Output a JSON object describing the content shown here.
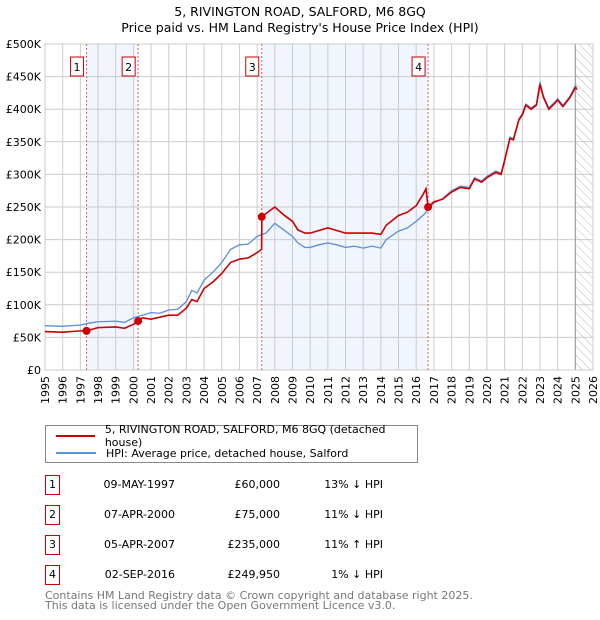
{
  "chart_data": {
    "type": "line",
    "title": "5, RIVINGTON ROAD, SALFORD, M6 8GQ",
    "subtitle": "Price paid vs. HM Land Registry's House Price Index (HPI)",
    "xlim": [
      1995,
      2026
    ],
    "ylim": [
      0,
      500000
    ],
    "x_ticks": [
      "1995",
      "1996",
      "1997",
      "1998",
      "1999",
      "2000",
      "2001",
      "2002",
      "2003",
      "2004",
      "2005",
      "2006",
      "2007",
      "2008",
      "2009",
      "2010",
      "2011",
      "2012",
      "2013",
      "2014",
      "2015",
      "2016",
      "2017",
      "2018",
      "2019",
      "2020",
      "2021",
      "2022",
      "2023",
      "2024",
      "2025",
      "2026"
    ],
    "y_ticks": [
      {
        "v": 0,
        "label": "£0"
      },
      {
        "v": 50000,
        "label": "£50K"
      },
      {
        "v": 100000,
        "label": "£100K"
      },
      {
        "v": 150000,
        "label": "£150K"
      },
      {
        "v": 200000,
        "label": "£200K"
      },
      {
        "v": 250000,
        "label": "£250K"
      },
      {
        "v": 300000,
        "label": "£300K"
      },
      {
        "v": 350000,
        "label": "£350K"
      },
      {
        "v": 400000,
        "label": "£400K"
      },
      {
        "v": 450000,
        "label": "£450K"
      },
      {
        "v": 500000,
        "label": "£500K"
      }
    ],
    "grid": true,
    "forecast_hatch_from": 2025.0,
    "series": [
      {
        "name": "5, RIVINGTON ROAD, SALFORD, M6 8GQ (detached house)",
        "color": "#cc0000",
        "x": [
          1995,
          1996,
          1997,
          1997.35,
          1998,
          1999,
          1999.5,
          2000,
          2000.27,
          2000.5,
          2001,
          2002,
          2002.5,
          2003,
          2003.3,
          2003.6,
          2004,
          2004.5,
          2005,
          2005.5,
          2006,
          2006.5,
          2007,
          2007.25,
          2007.27,
          2007.5,
          2008,
          2008.5,
          2009,
          2009.3,
          2009.7,
          2010,
          2010.5,
          2011,
          2011.5,
          2012,
          2012.5,
          2013,
          2013.5,
          2014,
          2014.3,
          2015,
          2015.5,
          2016,
          2016.4,
          2016.55,
          2016.67,
          2017,
          2017.5,
          2018,
          2018.5,
          2019,
          2019.3,
          2019.7,
          2020,
          2020.5,
          2020.8,
          2021,
          2021.3,
          2021.5,
          2021.8,
          2022,
          2022.2,
          2022.5,
          2022.8,
          2023,
          2023.2,
          2023.5,
          2023.8,
          2024,
          2024.3,
          2024.7,
          2025,
          2025.1
        ],
        "y": [
          59000,
          58000,
          60000,
          60000,
          65000,
          66000,
          64000,
          70000,
          75000,
          80000,
          78000,
          84000,
          84000,
          95000,
          108000,
          105000,
          125000,
          135000,
          148000,
          165000,
          170000,
          172000,
          180000,
          185000,
          235000,
          240000,
          250000,
          238000,
          228000,
          215000,
          210000,
          210000,
          214000,
          218000,
          214000,
          210000,
          210000,
          210000,
          210000,
          208000,
          222000,
          237000,
          242000,
          252000,
          270000,
          278000,
          250000,
          258000,
          262000,
          273000,
          280000,
          278000,
          293000,
          288000,
          295000,
          303000,
          300000,
          321000,
          355000,
          353000,
          383000,
          391000,
          406000,
          400000,
          406000,
          438000,
          418000,
          400000,
          408000,
          414000,
          404000,
          418000,
          433000,
          430000
        ]
      },
      {
        "name": "HPI: Average price, detached house, Salford",
        "color": "#5b8fd6",
        "x": [
          1995,
          1996,
          1997,
          1997.5,
          1998,
          1999,
          1999.5,
          2000,
          2000.5,
          2001,
          2001.5,
          2002,
          2002.5,
          2003,
          2003.3,
          2003.6,
          2004,
          2004.5,
          2005,
          2005.5,
          2006,
          2006.5,
          2007,
          2007.5,
          2008,
          2008.5,
          2009,
          2009.3,
          2009.7,
          2010,
          2010.5,
          2011,
          2011.5,
          2012,
          2012.5,
          2013,
          2013.5,
          2014,
          2014.3,
          2015,
          2015.5,
          2016,
          2016.5,
          2016.7,
          2017,
          2017.5,
          2018,
          2018.5,
          2019,
          2019.3,
          2019.7,
          2020,
          2020.5,
          2020.8,
          2021,
          2021.3,
          2021.5,
          2021.8,
          2022,
          2022.2,
          2022.5,
          2022.8,
          2023,
          2023.2,
          2023.5,
          2023.8,
          2024,
          2024.3,
          2024.7,
          2025,
          2025.1
        ],
        "y": [
          68000,
          67000,
          69000,
          72000,
          74000,
          75000,
          73000,
          80000,
          84000,
          88000,
          87000,
          92000,
          93000,
          105000,
          122000,
          118000,
          138000,
          150000,
          165000,
          185000,
          192000,
          193000,
          205000,
          210000,
          225000,
          215000,
          205000,
          195000,
          188000,
          188000,
          192000,
          195000,
          192000,
          188000,
          190000,
          187000,
          190000,
          187000,
          200000,
          213000,
          218000,
          228000,
          240000,
          248000,
          256000,
          263000,
          275000,
          282000,
          280000,
          295000,
          290000,
          297000,
          305000,
          302000,
          323000,
          357000,
          355000,
          385000,
          393000,
          408000,
          402000,
          408000,
          442000,
          420000,
          402000,
          410000,
          416000,
          406000,
          420000,
          436000,
          433000
        ]
      }
    ],
    "sales": [
      {
        "n": "1",
        "x": 1997.35,
        "y": 60000,
        "date": "09-MAY-1997",
        "price": "£60,000",
        "hpi": "13% ↓ HPI"
      },
      {
        "n": "2",
        "x": 2000.27,
        "y": 75000,
        "date": "07-APR-2000",
        "price": "£75,000",
        "hpi": "11% ↓ HPI"
      },
      {
        "n": "3",
        "x": 2007.26,
        "y": 235000,
        "date": "05-APR-2007",
        "price": "£235,000",
        "hpi": "11% ↑ HPI"
      },
      {
        "n": "4",
        "x": 2016.67,
        "y": 249950,
        "date": "02-SEP-2016",
        "price": "£249,950",
        "hpi": "1% ↓ HPI"
      }
    ],
    "legend": [
      "5, RIVINGTON ROAD, SALFORD, M6 8GQ (detached house)",
      "HPI: Average price, detached house, Salford"
    ]
  },
  "footer": [
    "Contains HM Land Registry data © Crown copyright and database right 2025.",
    "This data is licensed under the Open Government Licence v3.0."
  ]
}
